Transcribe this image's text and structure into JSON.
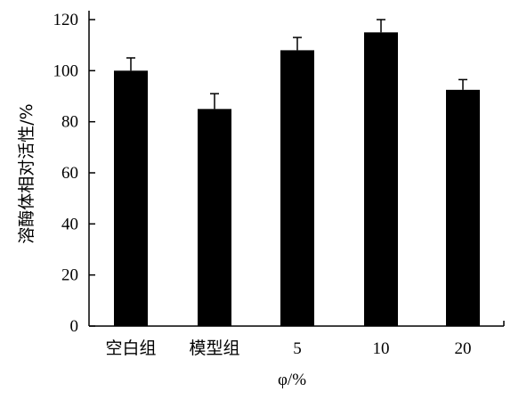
{
  "chart_data": {
    "type": "bar",
    "categories": [
      "空白组",
      "模型组",
      "5",
      "10",
      "20"
    ],
    "values": [
      100,
      85,
      108,
      115,
      92.5
    ],
    "errors": [
      5,
      6,
      5,
      5,
      4
    ],
    "xlabel": "φ/%",
    "ylabel": "溶酶体相对活性/%",
    "ylim": [
      0,
      120
    ],
    "yticks": [
      0,
      20,
      40,
      60,
      80,
      100,
      120
    ],
    "grid": false,
    "bar_color": "#000000"
  }
}
